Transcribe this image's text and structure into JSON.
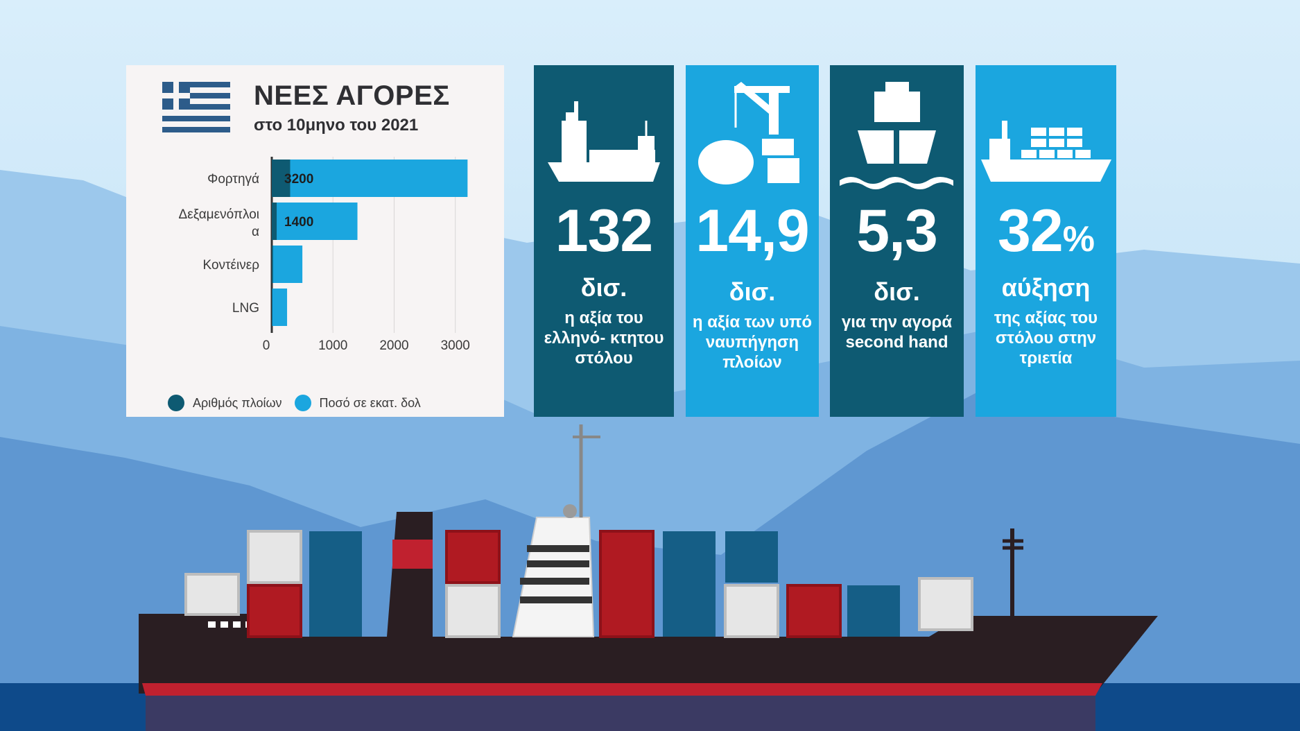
{
  "header": {
    "title": "ΝΕΕΣ ΑΓΟΡΕΣ",
    "subtitle": "στο 10μηνο του 2021"
  },
  "legend": [
    {
      "label": "Αριθμός πλοίων",
      "color": "#0e5a72"
    },
    {
      "label": "Ποσό σε εκατ. δολ",
      "color": "#1ba6df"
    }
  ],
  "chart_data": {
    "type": "bar",
    "orientation": "horizontal",
    "categories": [
      "Φορτηγά",
      "Δεξαμενόπλοι α",
      "Κοντέινερ",
      "LNG"
    ],
    "series": [
      {
        "name": "Αριθμός πλοίων",
        "values": [
          300,
          80,
          20,
          10
        ]
      },
      {
        "name": "Ποσό σε εκατ. δολ",
        "values": [
          3200,
          1400,
          500,
          250
        ]
      }
    ],
    "data_labels": [
      "3200",
      "1400",
      "",
      ""
    ],
    "xticks": [
      0,
      1000,
      2000,
      3000
    ],
    "xlim": [
      0,
      3400
    ],
    "grid": true,
    "legend_position": "bottom"
  },
  "stats": [
    {
      "value": "132",
      "value_suffix": "",
      "unit": "δισ.",
      "description": "η αξία του ελληνό- κτητου στόλου",
      "color": "#0e5a72",
      "icon": "cargo-ship-icon"
    },
    {
      "value": "14,9",
      "value_suffix": "",
      "unit": "δισ.",
      "description": "η αξία των υπό ναυπήγηση πλοίων",
      "color": "#1ba6df",
      "icon": "shipyard-crane-icon"
    },
    {
      "value": "5,3",
      "value_suffix": "",
      "unit": "δισ.",
      "description": "για την αγορά second hand",
      "color": "#0e5a72",
      "icon": "ship-on-waves-icon"
    },
    {
      "value": "32",
      "value_suffix": "%",
      "unit": "αύξηση",
      "description": "της αξίας του στόλου στην τριετία",
      "color": "#1ba6df",
      "icon": "container-ship-icon"
    }
  ]
}
